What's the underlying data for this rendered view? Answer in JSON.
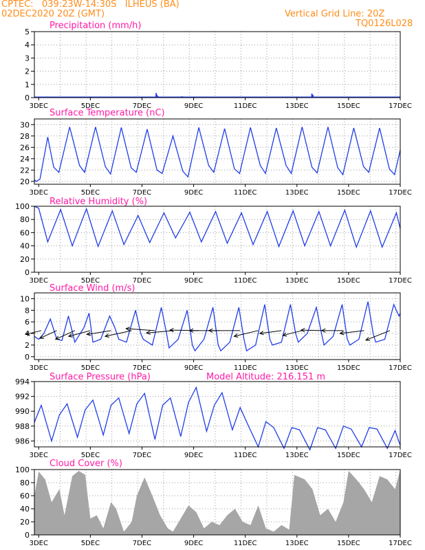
{
  "header": {
    "line1": "CPTEC:   039:23W-14:30S   ILHEUS (BA)",
    "line2": "02DEC2020 20Z (GMT)",
    "right1": "Vertical Grid Line: 20Z",
    "right2": "TQ0126L028",
    "color": "#ff8c1a"
  },
  "colors": {
    "title": "#ff1aa5",
    "series": "#1f3de8",
    "bars": "#a6a6a6",
    "arrow": "#000000"
  },
  "x_ticks": [
    "3DEC",
    "5DEC",
    "7DEC",
    "9DEC",
    "11DEC",
    "13DEC",
    "15DEC",
    "17DEC"
  ],
  "chart_data": [
    {
      "type": "bar",
      "title": "Precipitation (mm/h)",
      "ylim": [
        0,
        5
      ],
      "yticks": [
        "0",
        "1",
        "2",
        "3",
        "4",
        "5"
      ],
      "grid": true,
      "x_range_days": [
        2.833,
        17.0
      ],
      "x": [
        5.2,
        6.1,
        6.6,
        7.55,
        7.58,
        7.62,
        8.55,
        8.6,
        9.5,
        11.6,
        12.5,
        13.58,
        13.62,
        14.5,
        15.6
      ],
      "values": [
        0.05,
        0.05,
        0.05,
        0.35,
        0.2,
        0.1,
        0.1,
        0.05,
        0.05,
        0.05,
        0.05,
        0.3,
        0.2,
        0.05,
        0.05
      ]
    },
    {
      "type": "line",
      "title": "Surface Temperature (nC)",
      "ylim": [
        19.5,
        31
      ],
      "yticks": [
        "20",
        "22",
        "24",
        "26",
        "28",
        "30"
      ],
      "grid": true,
      "x_range_days": [
        2.833,
        17.0
      ],
      "series": [
        {
          "x": [
            2.83,
            2.9,
            3.05,
            3.35,
            3.58,
            3.78,
            4.2,
            4.58,
            4.78,
            5.2,
            5.58,
            5.78,
            6.2,
            6.58,
            6.78,
            7.2,
            7.58,
            7.78,
            8.2,
            8.58,
            8.78,
            9.2,
            9.58,
            9.78,
            10.2,
            10.58,
            10.78,
            11.2,
            11.58,
            11.78,
            12.2,
            12.58,
            12.78,
            13.2,
            13.58,
            13.78,
            14.2,
            14.58,
            14.78,
            15.2,
            15.58,
            15.78,
            16.2,
            16.58,
            16.78,
            17.0
          ],
          "y": [
            20.3,
            20.0,
            20.4,
            27.8,
            22.5,
            21.6,
            29.6,
            22.8,
            21.6,
            29.6,
            22.6,
            21.3,
            29.5,
            22.4,
            21.6,
            29.2,
            22.0,
            21.4,
            28.0,
            21.8,
            20.8,
            29.5,
            22.8,
            21.6,
            29.3,
            22.2,
            21.4,
            29.5,
            22.8,
            21.4,
            29.4,
            22.8,
            21.4,
            29.6,
            22.5,
            21.5,
            29.6,
            22.4,
            21.2,
            29.4,
            22.6,
            21.6,
            29.4,
            22.2,
            21.2,
            25.5
          ]
        }
      ]
    },
    {
      "type": "line",
      "title": "Relative Humidity (%)",
      "ylim": [
        0,
        100
      ],
      "yticks": [
        "0",
        "20",
        "40",
        "60",
        "80",
        "100"
      ],
      "grid": true,
      "x_range_days": [
        2.833,
        17.0
      ],
      "series": [
        {
          "x": [
            2.83,
            3.0,
            3.35,
            3.85,
            4.3,
            4.85,
            5.3,
            5.85,
            6.3,
            6.85,
            7.3,
            7.85,
            8.3,
            8.85,
            9.3,
            9.85,
            10.3,
            10.85,
            11.3,
            11.85,
            12.3,
            12.85,
            13.3,
            13.85,
            14.3,
            14.85,
            15.3,
            15.85,
            16.3,
            16.85,
            17.0
          ],
          "y": [
            100,
            97,
            46,
            95,
            40,
            96,
            39,
            93,
            42,
            86,
            45,
            90,
            52,
            91,
            46,
            92,
            44,
            90,
            42,
            92,
            39,
            93,
            40,
            92,
            40,
            94,
            38,
            93,
            38,
            90,
            66
          ]
        }
      ]
    },
    {
      "type": "line",
      "title": "Surface Wind (m/s)",
      "ylim": [
        -0.5,
        11
      ],
      "yticks": [
        "0",
        "2",
        "4",
        "6",
        "8",
        "10"
      ],
      "grid": true,
      "x_range_days": [
        2.833,
        17.0
      ],
      "series": [
        {
          "x": [
            2.83,
            3.0,
            3.2,
            3.45,
            3.7,
            3.9,
            4.15,
            4.4,
            4.75,
            4.95,
            5.1,
            5.4,
            5.75,
            5.95,
            6.1,
            6.4,
            6.75,
            6.95,
            7.05,
            7.4,
            7.75,
            7.95,
            8.05,
            8.4,
            8.75,
            8.95,
            9.05,
            9.4,
            9.75,
            9.95,
            10.05,
            10.4,
            10.75,
            10.95,
            11.05,
            11.4,
            11.75,
            11.95,
            12.05,
            12.4,
            12.75,
            12.95,
            13.05,
            13.4,
            13.75,
            13.95,
            14.05,
            14.4,
            14.75,
            14.95,
            15.05,
            15.4,
            15.75,
            15.95,
            16.05,
            16.4,
            16.75,
            16.95,
            17.0
          ],
          "y": [
            3.5,
            3.0,
            4.0,
            6.5,
            3.0,
            2.8,
            7.0,
            2.5,
            5.0,
            7.5,
            2.5,
            3.0,
            7.0,
            5.0,
            3.0,
            2.5,
            8.0,
            4.0,
            3.0,
            2.0,
            8.5,
            4.0,
            1.5,
            3.0,
            8.0,
            2.0,
            1.0,
            3.0,
            8.5,
            2.0,
            1.0,
            2.5,
            8.5,
            3.0,
            1.0,
            2.0,
            9.0,
            3.0,
            2.0,
            2.5,
            9.0,
            4.0,
            2.5,
            4.0,
            8.5,
            4.0,
            2.0,
            3.5,
            9.0,
            3.0,
            2.0,
            3.0,
            9.5,
            4.0,
            2.5,
            3.0,
            9.0,
            7.0,
            7.5
          ]
        }
      ],
      "vectors": {
        "x": [
          3.1,
          3.7,
          4.4,
          5.0,
          5.8,
          6.6,
          7.5,
          8.2,
          9.2,
          10.0,
          10.8,
          11.5,
          12.4,
          13.2,
          14.0,
          14.8,
          15.6,
          16.6
        ],
        "u": [
          -3.2,
          -3.5,
          -4.0,
          -4.5,
          -5.0,
          -5.5,
          -6.0,
          -5.5,
          -6.0,
          -6.2,
          -6.5,
          -5.0,
          -4.5,
          -4.0,
          -4.5,
          -4.5,
          -5.0,
          -5.0
        ],
        "v": [
          -0.8,
          -1.6,
          -1.8,
          -1.2,
          -0.8,
          -1.2,
          0.4,
          -0.5,
          0.1,
          0.0,
          0.0,
          -1.2,
          -0.6,
          -1.0,
          0.1,
          0.0,
          -0.6,
          -2.0
        ]
      }
    },
    {
      "type": "line",
      "title": "Surface Pressure (hPa)",
      "annotation": "Model Altitude: 216.151 m",
      "ylim": [
        985.2,
        994
      ],
      "yticks": [
        "986",
        "988",
        "990",
        "992",
        "994"
      ],
      "grid": true,
      "x_range_days": [
        2.833,
        17.0
      ],
      "series": [
        {
          "x": [
            2.83,
            3.1,
            3.5,
            3.8,
            4.1,
            4.5,
            4.8,
            5.1,
            5.5,
            5.8,
            6.1,
            6.5,
            6.8,
            7.1,
            7.5,
            7.8,
            8.1,
            8.5,
            8.8,
            9.1,
            9.5,
            9.8,
            10.1,
            10.5,
            10.8,
            11.1,
            11.5,
            11.8,
            12.1,
            12.5,
            12.8,
            13.1,
            13.5,
            13.8,
            14.1,
            14.5,
            14.8,
            15.1,
            15.5,
            15.8,
            16.1,
            16.5,
            16.8,
            17.0
          ],
          "y": [
            988.5,
            990.8,
            986.0,
            989.5,
            991.0,
            986.5,
            990.2,
            991.5,
            986.8,
            990.8,
            991.8,
            987.0,
            991.0,
            992.4,
            986.2,
            990.8,
            991.8,
            986.6,
            991.2,
            993.2,
            987.3,
            990.8,
            992.5,
            987.5,
            990.5,
            988.2,
            985.2,
            988.6,
            987.8,
            985.0,
            987.8,
            987.5,
            984.8,
            987.8,
            987.5,
            985.0,
            988.0,
            987.6,
            985.2,
            987.8,
            987.6,
            985.0,
            987.4,
            985.4
          ]
        }
      ]
    },
    {
      "type": "area",
      "title": "Cloud Cover (%)",
      "ylim": [
        0,
        100
      ],
      "yticks": [
        "0",
        "20",
        "40",
        "60",
        "80",
        "100"
      ],
      "grid": true,
      "x_range_days": [
        2.833,
        17.0
      ],
      "series": [
        {
          "x": [
            2.83,
            3.0,
            3.25,
            3.5,
            3.8,
            4.0,
            4.3,
            4.55,
            4.8,
            5.0,
            5.25,
            5.5,
            5.8,
            6.0,
            6.3,
            6.6,
            6.8,
            7.1,
            7.4,
            7.7,
            8.0,
            8.2,
            8.5,
            8.8,
            9.1,
            9.4,
            9.7,
            10.0,
            10.3,
            10.6,
            10.9,
            11.2,
            11.5,
            11.8,
            12.1,
            12.4,
            12.7,
            12.9,
            13.0,
            13.3,
            13.6,
            13.9,
            14.2,
            14.5,
            14.8,
            15.0,
            15.3,
            15.6,
            15.9,
            16.2,
            16.5,
            16.8,
            17.0
          ],
          "y": [
            60,
            97,
            85,
            50,
            70,
            30,
            90,
            98,
            92,
            25,
            30,
            10,
            50,
            40,
            5,
            20,
            60,
            88,
            60,
            30,
            10,
            5,
            25,
            45,
            35,
            10,
            20,
            15,
            30,
            40,
            20,
            15,
            45,
            10,
            5,
            15,
            8,
            92,
            90,
            85,
            70,
            30,
            40,
            20,
            50,
            98,
            85,
            70,
            50,
            90,
            85,
            70,
            100
          ]
        }
      ]
    }
  ]
}
